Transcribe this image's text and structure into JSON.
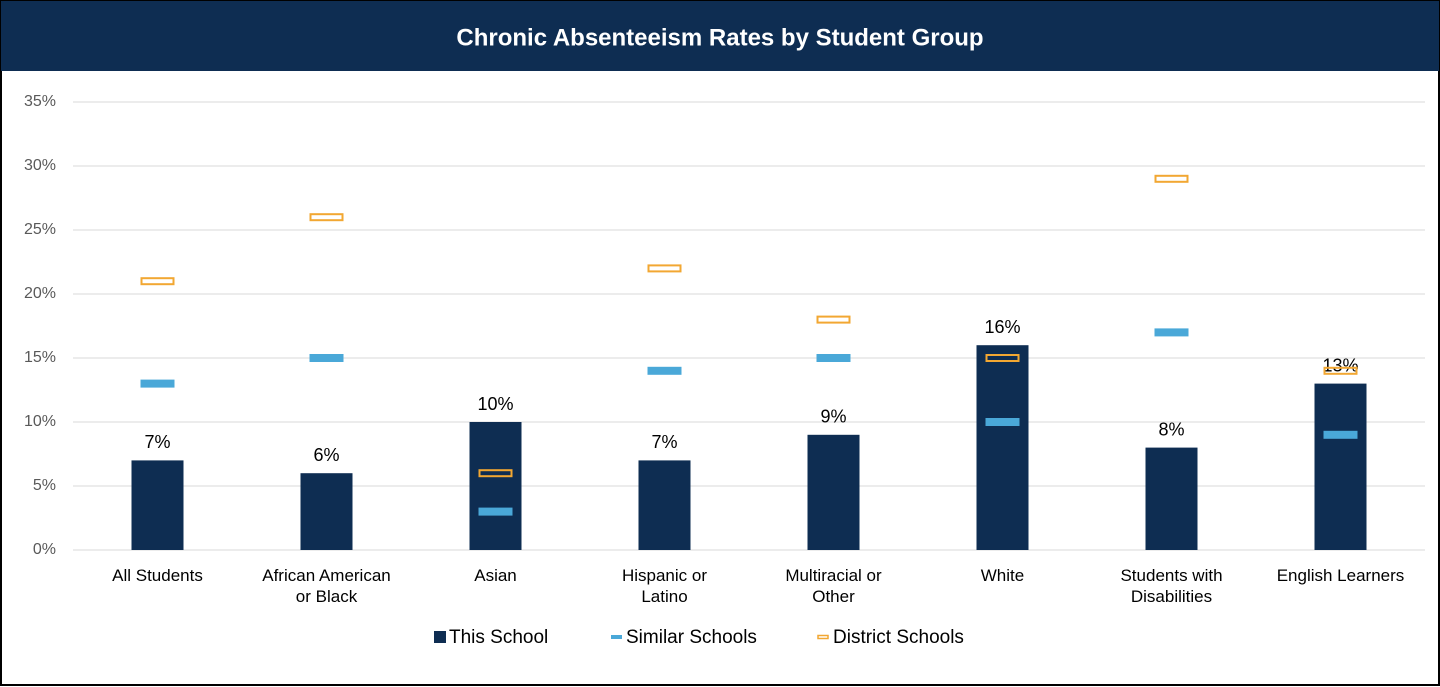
{
  "chart_data": {
    "type": "bar",
    "title": "Chronic Absenteeism Rates by Student Group",
    "categories": [
      "All Students",
      "African American or Black",
      "Asian",
      "Hispanic or Latino",
      "Multiracial or Other",
      "White",
      "Students with Disabilities",
      "English Learners"
    ],
    "series": [
      {
        "name": "This School",
        "color": "#0e2d52",
        "style": "bar",
        "values": [
          7,
          6,
          10,
          7,
          9,
          16,
          8,
          13
        ],
        "value_labels": [
          "7%",
          "6%",
          "10%",
          "7%",
          "9%",
          "16%",
          "8%",
          "13%"
        ]
      },
      {
        "name": "Similar Schools",
        "color": "#4aa8d8",
        "style": "dash",
        "values": [
          13,
          15,
          3,
          14,
          15,
          10,
          17,
          9
        ]
      },
      {
        "name": "District Schools",
        "color": "#f2a732",
        "style": "outline",
        "values": [
          21,
          26,
          6,
          22,
          18,
          15,
          29,
          14
        ]
      }
    ],
    "ylim": [
      0,
      35
    ],
    "yticks": [
      {
        "value": 0,
        "label": "0%"
      },
      {
        "value": 5,
        "label": "5%"
      },
      {
        "value": 10,
        "label": "10%"
      },
      {
        "value": 15,
        "label": "15%"
      },
      {
        "value": 20,
        "label": "20%"
      },
      {
        "value": 25,
        "label": "25%"
      },
      {
        "value": 30,
        "label": "30%"
      },
      {
        "value": 35,
        "label": "35%"
      }
    ],
    "grid": true,
    "legend": "bottom"
  }
}
